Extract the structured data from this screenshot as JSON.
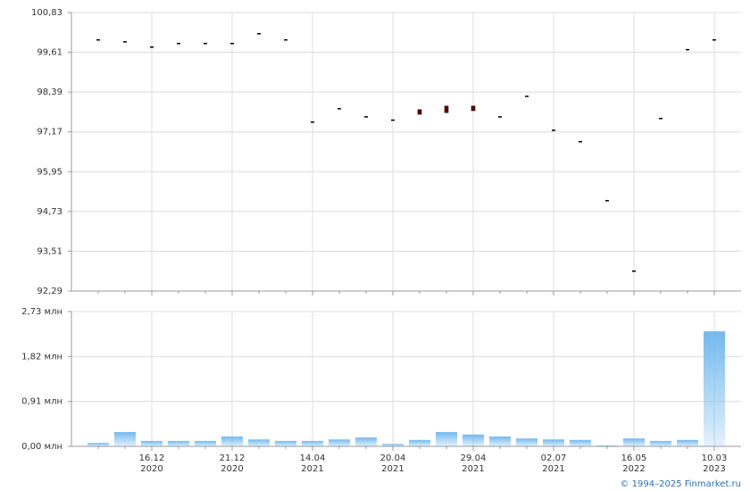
{
  "chart_data": [
    {
      "type": "candlestick",
      "color": "#6b0000",
      "open": [
        100.01,
        99.95,
        99.79,
        99.9,
        99.9,
        99.9,
        100.2,
        100.01,
        97.49,
        97.9,
        97.65,
        97.55,
        97.85,
        97.96,
        97.96,
        97.65,
        98.28,
        97.24,
        96.89,
        95.08,
        92.92,
        97.6,
        99.71,
        100.01
      ],
      "close": [
        100.01,
        99.95,
        99.79,
        99.9,
        99.9,
        99.9,
        100.2,
        100.01,
        97.49,
        97.9,
        97.65,
        97.55,
        97.71,
        97.76,
        97.82,
        97.65,
        98.28,
        97.24,
        96.89,
        95.08,
        92.92,
        97.6,
        99.71,
        100.01
      ],
      "ylim": [
        92.29,
        100.83
      ],
      "yticks": [
        {
          "value": 92.29,
          "label": "92,29"
        },
        {
          "value": 93.51,
          "label": "93,51"
        },
        {
          "value": 94.73,
          "label": "94,73"
        },
        {
          "value": 95.95,
          "label": "95,95"
        },
        {
          "value": 97.17,
          "label": "97,17"
        },
        {
          "value": 98.39,
          "label": "98,39"
        },
        {
          "value": 99.61,
          "label": "99,61"
        },
        {
          "value": 100.83,
          "label": "100,83"
        }
      ],
      "grid": true
    },
    {
      "type": "bar",
      "color": "#74b9ee",
      "categories": [
        null,
        null,
        "16.12",
        null,
        null,
        "21.12",
        null,
        null,
        "14.04",
        null,
        null,
        "20.04",
        null,
        null,
        "29.04",
        null,
        null,
        "02.07",
        null,
        null,
        "16.05",
        null,
        null,
        "10.03"
      ],
      "categories_line2": [
        null,
        null,
        "2020",
        null,
        null,
        "2020",
        null,
        null,
        "2021",
        null,
        null,
        "2021",
        null,
        null,
        "2021",
        null,
        null,
        "2021",
        null,
        null,
        "2022",
        null,
        null,
        "2023"
      ],
      "values": [
        0.07,
        0.29,
        0.11,
        0.11,
        0.11,
        0.2,
        0.14,
        0.11,
        0.11,
        0.14,
        0.18,
        0.05,
        0.13,
        0.29,
        0.24,
        0.2,
        0.16,
        0.14,
        0.13,
        0.02,
        0.16,
        0.11,
        0.13,
        2.33
      ],
      "ylim": [
        0,
        2.73
      ],
      "yticks": [
        {
          "value": 0,
          "label": "0,00 млн"
        },
        {
          "value": 0.91,
          "label": "0,91 млн"
        },
        {
          "value": 1.82,
          "label": "1,82 млн"
        },
        {
          "value": 2.73,
          "label": "2,73 млн"
        }
      ],
      "grid": true
    }
  ],
  "copyright": "© 1994–2025 Finmarket.ru"
}
